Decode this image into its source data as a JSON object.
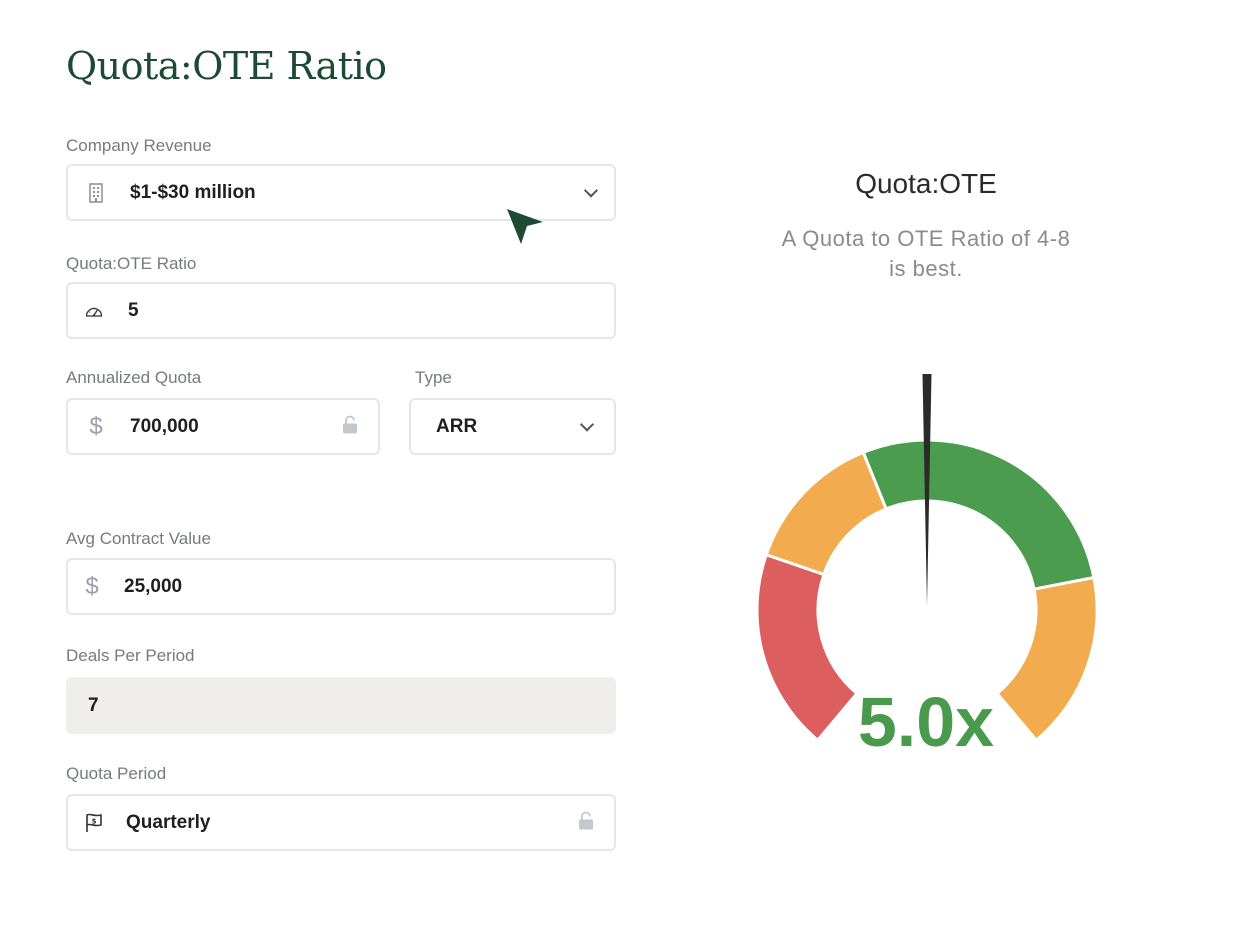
{
  "page": {
    "title": "Quota:OTE Ratio"
  },
  "form": {
    "company_revenue": {
      "label": "Company Revenue",
      "value": "$1-$30 million",
      "icon": "building-icon"
    },
    "quota_ote_ratio": {
      "label": "Quota:OTE Ratio",
      "value": "5",
      "icon": "speedometer-icon"
    },
    "annualized_quota": {
      "label": "Annualized Quota",
      "value": "700,000",
      "prefix": "$",
      "locked": true
    },
    "type": {
      "label": "Type",
      "value": "ARR"
    },
    "avg_contract_value": {
      "label": "Avg Contract Value",
      "value": "25,000",
      "prefix": "$"
    },
    "deals_per_period": {
      "label": "Deals Per Period",
      "value": "7"
    },
    "quota_period": {
      "label": "Quota Period",
      "value": "Quarterly",
      "icon": "flag-icon",
      "locked": true
    }
  },
  "gauge": {
    "title": "Quota:OTE",
    "subtitle_line1": "A Quota to OTE Ratio of 4-8",
    "subtitle_line2": "is best.",
    "value_label": "5.0x",
    "value": 5.0,
    "colors": {
      "red": "#dc5e5f",
      "orange": "#f2ab4e",
      "green": "#4c9c4f",
      "needle": "#2b2b2b",
      "value_text": "#4a9a4d"
    }
  },
  "colors": {
    "title": "#1d4a34",
    "label": "#777a7e",
    "border": "#e6e6e6",
    "disabled_bg": "#efeeec",
    "cursor": "#1d4a34"
  }
}
